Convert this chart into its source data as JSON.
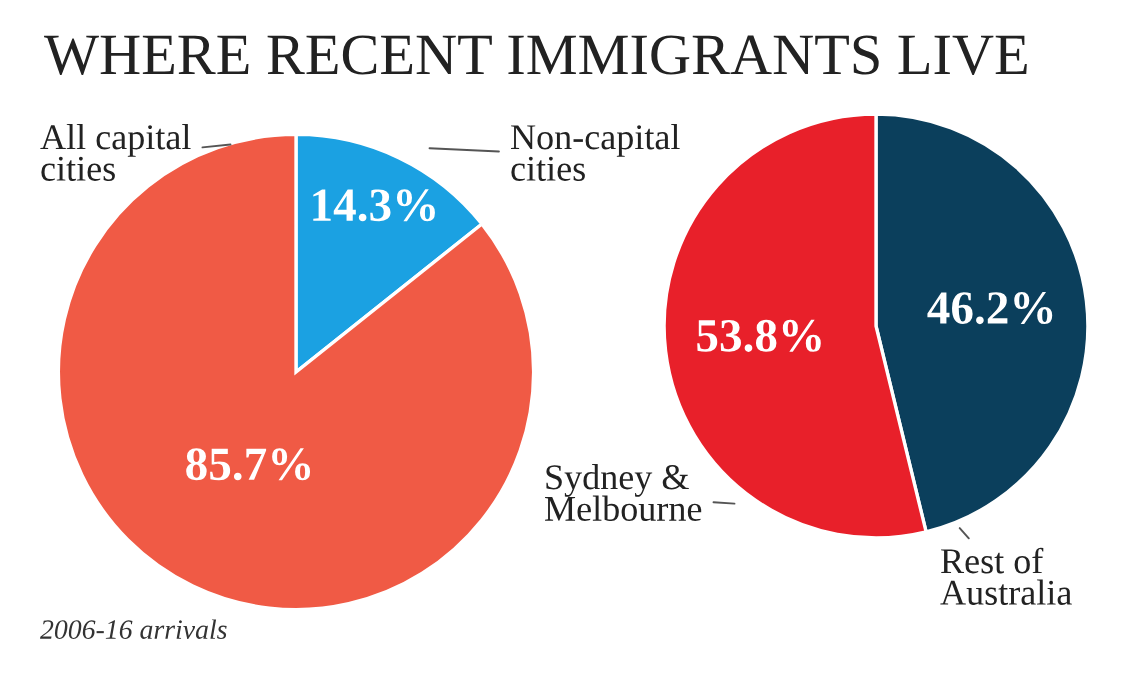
{
  "chart_data": [
    {
      "type": "pie",
      "title": "WHERE RECENT IMMIGRANTS LIVE",
      "categories": [
        "Non-capital\ncities",
        "All capital\ncities"
      ],
      "values": [
        14.3,
        85.7
      ],
      "colors": [
        "#1ba1e2",
        "#f05a45"
      ],
      "value_labels": [
        "14.3%",
        "85.7%"
      ],
      "annotations": [
        "2006-16 arrivals"
      ]
    },
    {
      "type": "pie",
      "categories": [
        "Rest of\nAustralia",
        "Sydney &\nMelbourne"
      ],
      "values": [
        46.2,
        53.8
      ],
      "colors": [
        "#0b3f5c",
        "#e8202a"
      ],
      "value_labels": [
        "46.2%",
        "53.8%"
      ]
    }
  ]
}
